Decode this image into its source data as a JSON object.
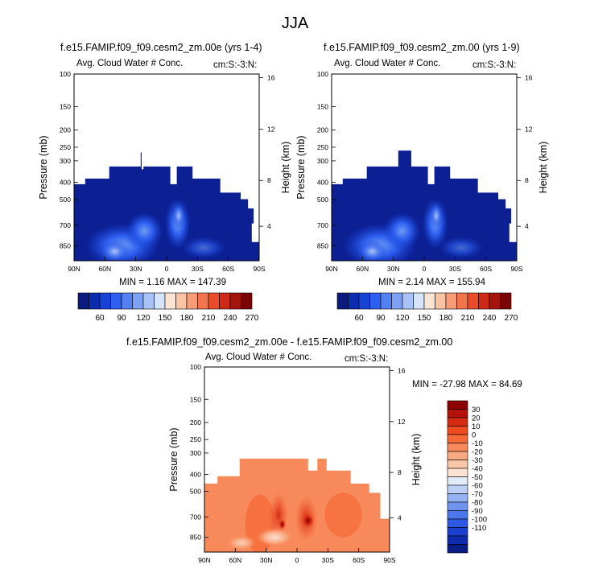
{
  "suptitle": "JJA",
  "panels": [
    {
      "title": "f.e15.FAMIP.f09_f09.cesm2_zm.00e (yrs 1-4)",
      "left_label": "Avg. Cloud Water # Conc.",
      "right_label": "cm:S:-3:N:",
      "stats": "MIN =   1.16  MAX = 147.39"
    },
    {
      "title": "f.e15.FAMIP.f09_f09.cesm2_zm.00 (yrs 1-9)",
      "left_label": "Avg. Cloud Water # Conc.",
      "right_label": "cm:S:-3:N:",
      "stats": "MIN =   2.14  MAX = 155.94"
    },
    {
      "title": "f.e15.FAMIP.f09_f09.cesm2_zm.00e - f.e15.FAMIP.f09_f09.cesm2_zm.00",
      "left_label": "Avg. Cloud Water # Conc.",
      "right_label": "cm:S:-3:N:",
      "stats": "MIN = -27.98  MAX =  84.69"
    }
  ],
  "axes": {
    "ylabel": "Pressure (mb)",
    "y2label": "Height (km)",
    "pressure_ticks": [
      "100",
      "150",
      "200",
      "250",
      "300",
      "400",
      "500",
      "700",
      "850"
    ],
    "height_ticks": [
      "16",
      "12",
      "8",
      "4"
    ],
    "lat_ticks": [
      "90N",
      "60N",
      "30N",
      "0",
      "30S",
      "60S",
      "90S"
    ]
  },
  "colorbar_top": {
    "labels": [
      "60",
      "90",
      "120",
      "150",
      "180",
      "210",
      "240",
      "270"
    ],
    "colors": [
      "#0a1a7e",
      "#0c2cb0",
      "#1642d6",
      "#2e5ff0",
      "#5380f3",
      "#7ea0f5",
      "#a9c2f7",
      "#d6e4f9",
      "#fce4d4",
      "#f9c3a6",
      "#f69d77",
      "#f2744c",
      "#e94b2b",
      "#cc2a16",
      "#a5140d",
      "#7a0505"
    ]
  },
  "colorbar_diff": {
    "labels": [
      "30",
      "20",
      "10",
      "0",
      "-10",
      "-20",
      "-30",
      "-40",
      "-50",
      "-60",
      "-70",
      "-80",
      "-90",
      "-100",
      "-110"
    ],
    "colors": [
      "#8b0000",
      "#b3110a",
      "#d52b12",
      "#ef4a20",
      "#f66a3a",
      "#f8895a",
      "#f9a982",
      "#fac6a8",
      "#fbe2d1",
      "#e2ebf8",
      "#bcd0f5",
      "#95b3f2",
      "#6f94ef",
      "#4d76ec",
      "#2f59e3",
      "#1b3fcf",
      "#0f2bac",
      "#0a1d86"
    ]
  },
  "chart_data": [
    {
      "type": "heatmap",
      "title": "f.e15.FAMIP.f09_f09.cesm2_zm.00e (yrs 1-4)",
      "xlabel": "",
      "ylabel": "Pressure (mb)",
      "y2label": "Height (km)",
      "x_ticks": [
        "90N",
        "60N",
        "30N",
        "0",
        "30S",
        "60S",
        "90S"
      ],
      "y_ticks": [
        100,
        150,
        200,
        250,
        300,
        400,
        500,
        700,
        850
      ],
      "y_scale": "log",
      "ylim": [
        1000,
        100
      ],
      "field_min": 1.16,
      "field_max": 147.39,
      "colorbar_levels": [
        60,
        90,
        120,
        150,
        180,
        210,
        240,
        270
      ]
    },
    {
      "type": "heatmap",
      "title": "f.e15.FAMIP.f09_f09.cesm2_zm.00 (yrs 1-9)",
      "xlabel": "",
      "ylabel": "Pressure (mb)",
      "y2label": "Height (km)",
      "x_ticks": [
        "90N",
        "60N",
        "30N",
        "0",
        "30S",
        "60S",
        "90S"
      ],
      "y_ticks": [
        100,
        150,
        200,
        250,
        300,
        400,
        500,
        700,
        850
      ],
      "y_scale": "log",
      "ylim": [
        1000,
        100
      ],
      "field_min": 2.14,
      "field_max": 155.94,
      "colorbar_levels": [
        60,
        90,
        120,
        150,
        180,
        210,
        240,
        270
      ]
    },
    {
      "type": "heatmap",
      "title": "f.e15.FAMIP.f09_f09.cesm2_zm.00e - f.e15.FAMIP.f09_f09.cesm2_zm.00",
      "xlabel": "",
      "ylabel": "Pressure (mb)",
      "y2label": "Height (km)",
      "x_ticks": [
        "90N",
        "60N",
        "30N",
        "0",
        "30S",
        "60S",
        "90S"
      ],
      "y_ticks": [
        100,
        150,
        200,
        250,
        300,
        400,
        500,
        700,
        850
      ],
      "y_scale": "log",
      "ylim": [
        1000,
        100
      ],
      "field_min": -27.98,
      "field_max": 84.69,
      "colorbar_levels": [
        30,
        20,
        10,
        0,
        -10,
        -20,
        -30,
        -40,
        -50,
        -60,
        -70,
        -80,
        -90,
        -100,
        -110
      ]
    }
  ]
}
